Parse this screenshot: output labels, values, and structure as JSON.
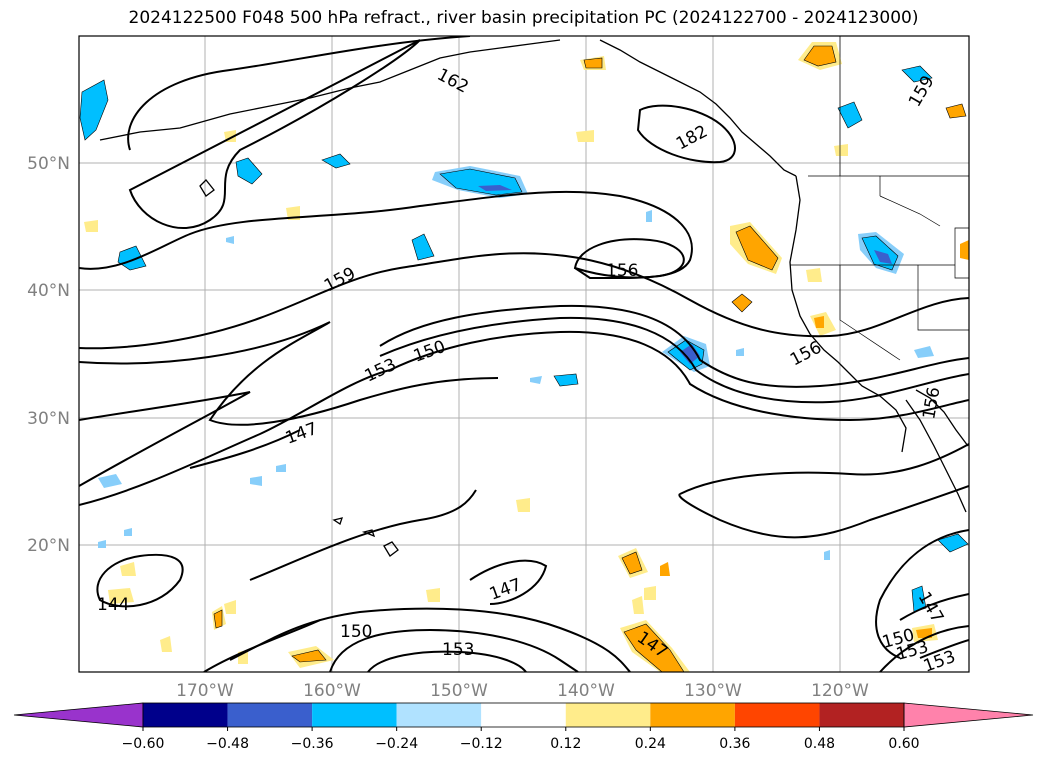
{
  "title": "2024122500 F048 500 hPa refract., river basin precipitation PC (2024122700 - 2024123000)",
  "lat_labels": [
    "50°N",
    "40°N",
    "30°N",
    "20°N"
  ],
  "lon_labels": [
    "170°W",
    "160°W",
    "150°W",
    "140°W",
    "130°W",
    "120°W"
  ],
  "colorbar": {
    "tick_labels": [
      "−0.60",
      "−0.48",
      "−0.36",
      "−0.24",
      "−0.12",
      "0.12",
      "0.24",
      "0.36",
      "0.48",
      "0.60"
    ],
    "colors": [
      "#9933cc",
      "#00008b",
      "#3a5fcd",
      "#00bfff",
      "#b0e2ff",
      "#ffffff",
      "#ffec8b",
      "#ffa500",
      "#ff4500",
      "#b22222",
      "#ff82ab"
    ]
  },
  "contour_labels": [
    "162",
    "182",
    "159",
    "156",
    "159",
    "153",
    "150",
    "156",
    "147",
    "156",
    "144",
    "147",
    "150",
    "153",
    "147",
    "147",
    "150",
    "153",
    "153"
  ],
  "contour_line_color": "#000000",
  "coastline_color": "#000000",
  "grid_color": "#b0b0b0"
}
